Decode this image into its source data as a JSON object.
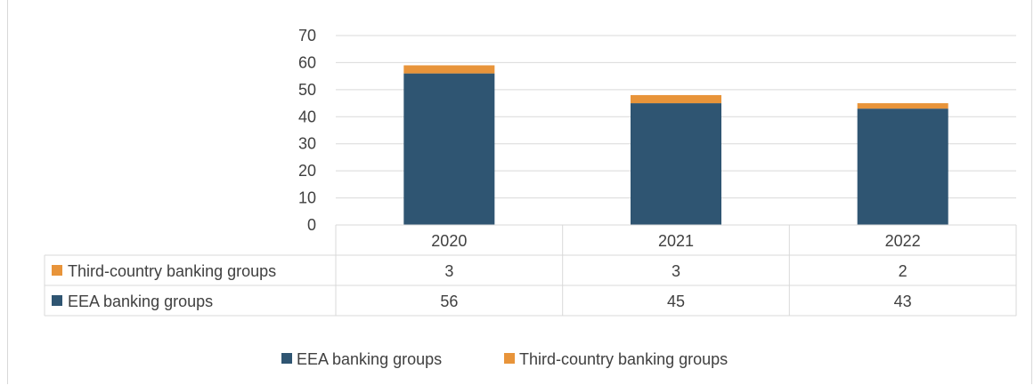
{
  "chart_data": {
    "type": "bar",
    "stacked": true,
    "categories": [
      "2020",
      "2021",
      "2022"
    ],
    "series": [
      {
        "name": "EEA banking groups",
        "color": "#2f5572",
        "values": [
          56,
          45,
          43
        ]
      },
      {
        "name": "Third-country banking groups",
        "color": "#e8943a",
        "values": [
          3,
          3,
          2
        ]
      }
    ],
    "ylim": [
      0,
      70
    ],
    "yticks": [
      "0",
      "10",
      "20",
      "30",
      "40",
      "50",
      "60",
      "70"
    ],
    "grid": true,
    "data_table": {
      "rows": [
        {
          "label": "Third-country banking groups",
          "values": [
            "3",
            "3",
            "2"
          ]
        },
        {
          "label": "EEA banking groups",
          "values": [
            "56",
            "45",
            "43"
          ]
        }
      ]
    },
    "legend": {
      "position": "bottom",
      "entries": [
        "EEA banking groups",
        "Third-country banking groups"
      ]
    }
  }
}
